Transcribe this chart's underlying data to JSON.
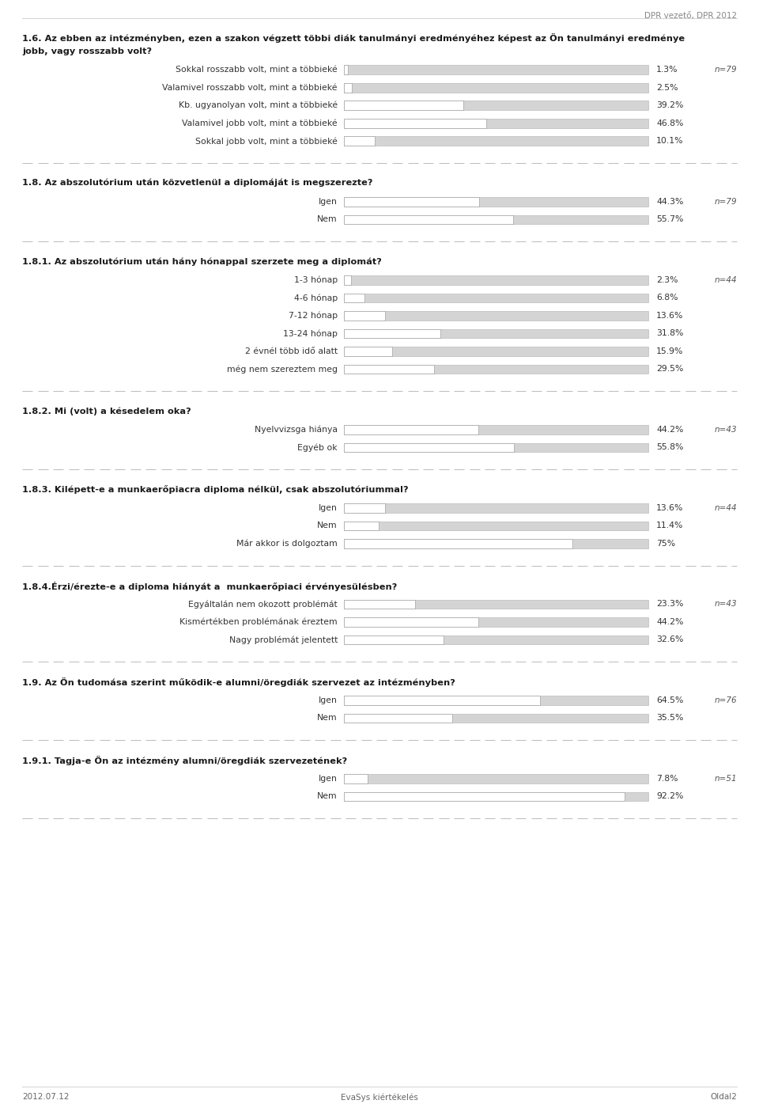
{
  "header_right": "DPR vezető, DPR 2012",
  "footer_left": "2012.07.12",
  "footer_center": "EvaSys kiértékelés",
  "footer_right": "Oldal2",
  "background_color": "#ffffff",
  "bar_bg_color": "#d4d4d4",
  "bar_fill_color": "#ffffff",
  "sections": [
    {
      "title": "1.6. Az ebben az intézményben, ezen a szakon végzett többi diák tanulmányi eredményéhez képest az Ön tanulmányi eredménye\njobb, vagy rosszabb volt?",
      "n_label": "n=79",
      "items": [
        {
          "label": "Sokkal rosszabb volt, mint a többieké",
          "value": 1.3,
          "pct": "1.3%"
        },
        {
          "label": "Valamivel rosszabb volt, mint a többieké",
          "value": 2.5,
          "pct": "2.5%"
        },
        {
          "label": "Kb. ugyanolyan volt, mint a többieké",
          "value": 39.2,
          "pct": "39.2%"
        },
        {
          "label": "Valamivel jobb volt, mint a többieké",
          "value": 46.8,
          "pct": "46.8%"
        },
        {
          "label": "Sokkal jobb volt, mint a többieké",
          "value": 10.1,
          "pct": "10.1%"
        }
      ]
    },
    {
      "title": "1.8. Az abszolutórium után közvetlenül a diplomáját is megszerezte?",
      "n_label": "n=79",
      "items": [
        {
          "label": "Igen",
          "value": 44.3,
          "pct": "44.3%"
        },
        {
          "label": "Nem",
          "value": 55.7,
          "pct": "55.7%"
        }
      ]
    },
    {
      "title": "1.8.1. Az abszolutórium után hány hónappal szerzete meg a diplomát?",
      "n_label": "n=44",
      "items": [
        {
          "label": "1-3 hónap",
          "value": 2.3,
          "pct": "2.3%"
        },
        {
          "label": "4-6 hónap",
          "value": 6.8,
          "pct": "6.8%"
        },
        {
          "label": "7-12 hónap",
          "value": 13.6,
          "pct": "13.6%"
        },
        {
          "label": "13-24 hónap",
          "value": 31.8,
          "pct": "31.8%"
        },
        {
          "label": "2 évnél több idő alatt",
          "value": 15.9,
          "pct": "15.9%"
        },
        {
          "label": "még nem szereztem meg",
          "value": 29.5,
          "pct": "29.5%"
        }
      ]
    },
    {
      "title": "1.8.2. Mi (volt) a késedelem oka?",
      "n_label": "n=43",
      "items": [
        {
          "label": "Nyelvvizsga hiánya",
          "value": 44.2,
          "pct": "44.2%"
        },
        {
          "label": "Egyéb ok",
          "value": 55.8,
          "pct": "55.8%"
        }
      ]
    },
    {
      "title": "1.8.3. Kilépett-e a munkaerőpiacra diploma nélkül, csak abszolutóriummal?",
      "n_label": "n=44",
      "items": [
        {
          "label": "Igen",
          "value": 13.6,
          "pct": "13.6%"
        },
        {
          "label": "Nem",
          "value": 11.4,
          "pct": "11.4%"
        },
        {
          "label": "Már akkor is dolgoztam",
          "value": 75.0,
          "pct": "75%"
        }
      ]
    },
    {
      "title": "1.8.4.Érzi/érezte-e a diploma hiányát a  munkaerőpiaci érvényesülésben?",
      "n_label": "n=43",
      "items": [
        {
          "label": "Egyáltalán nem okozott problémát",
          "value": 23.3,
          "pct": "23.3%"
        },
        {
          "label": "Kismértékben problémának éreztem",
          "value": 44.2,
          "pct": "44.2%"
        },
        {
          "label": "Nagy problémát jelentett",
          "value": 32.6,
          "pct": "32.6%"
        }
      ]
    },
    {
      "title": "1.9. Az Ön tudomása szerint működik-e alumni/öregdiák szervezet az intézményben?",
      "n_label": "n=76",
      "items": [
        {
          "label": "Igen",
          "value": 64.5,
          "pct": "64.5%"
        },
        {
          "label": "Nem",
          "value": 35.5,
          "pct": "35.5%"
        }
      ]
    },
    {
      "title": "1.9.1. Tagja-e Ön az intézmény alumni/öregdiák szervezetének?",
      "n_label": "n=51",
      "items": [
        {
          "label": "Igen",
          "value": 7.8,
          "pct": "7.8%"
        },
        {
          "label": "Nem",
          "value": 92.2,
          "pct": "92.2%"
        }
      ]
    }
  ]
}
